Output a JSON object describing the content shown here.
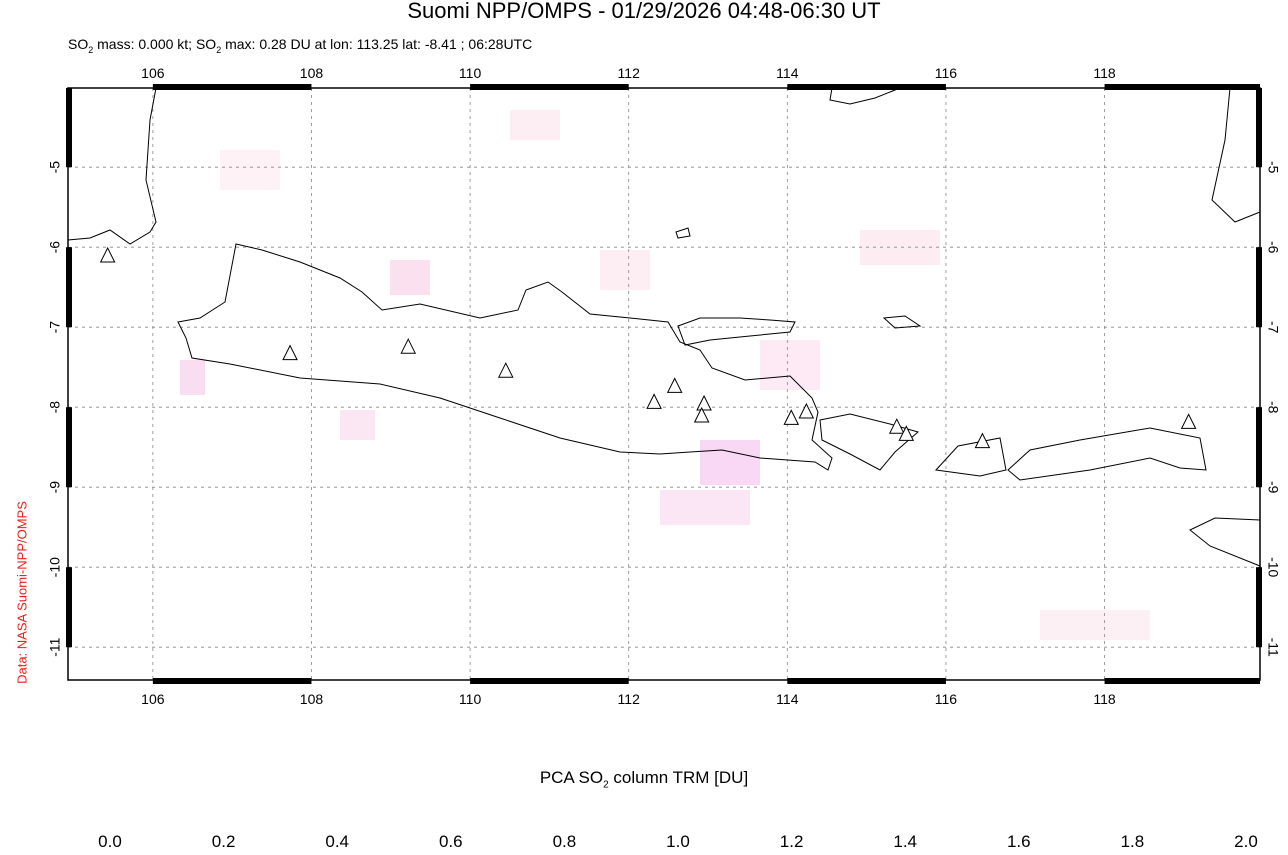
{
  "header": {
    "title": "Suomi NPP/OMPS - 01/29/2026 04:48-06:30 UT",
    "subtitle_parts": [
      "SO",
      "2",
      " mass: 0.000 kt; SO",
      "2",
      " max: 0.28 DU at lon: 113.25 lat: -8.41 ; 06:28UTC"
    ]
  },
  "side_label": "Data: NASA Suomi-NPP/OMPS",
  "map": {
    "lon_range": [
      104.93,
      119.96
    ],
    "lat_range": [
      -11.41,
      -4.01
    ],
    "lon_ticks": [
      "106",
      "108",
      "110",
      "112",
      "114",
      "116",
      "118"
    ],
    "lat_ticks": [
      "-5",
      "-6",
      "-7",
      "-8",
      "-9",
      "-10",
      "-11"
    ],
    "volcanoes": [
      [
        105.43,
        -6.11
      ],
      [
        107.73,
        -7.33
      ],
      [
        109.22,
        -7.25
      ],
      [
        110.45,
        -7.55
      ],
      [
        112.32,
        -7.94
      ],
      [
        112.58,
        -7.74
      ],
      [
        112.95,
        -7.96
      ],
      [
        112.92,
        -8.11
      ],
      [
        114.05,
        -8.14
      ],
      [
        114.24,
        -8.06
      ],
      [
        115.38,
        -8.25
      ],
      [
        115.5,
        -8.34
      ],
      [
        116.46,
        -8.43
      ],
      [
        119.06,
        -8.19
      ]
    ]
  },
  "colorbar": {
    "title_parts": [
      "PCA SO",
      "2",
      " column TRM [DU]"
    ],
    "ticks": [
      "0.0",
      "0.2",
      "0.4",
      "0.6",
      "0.8",
      "1.0",
      "1.2",
      "1.4",
      "1.6",
      "1.8",
      "2.0"
    ],
    "colors": [
      "#ffffff",
      "#fbd0ec",
      "#f5c8f8",
      "#c8b0f8",
      "#9aa8f8",
      "#88d8f8",
      "#78f8f0",
      "#60f080",
      "#40e840",
      "#b8f040",
      "#f8f838",
      "#f8a020",
      "#f82818"
    ]
  }
}
